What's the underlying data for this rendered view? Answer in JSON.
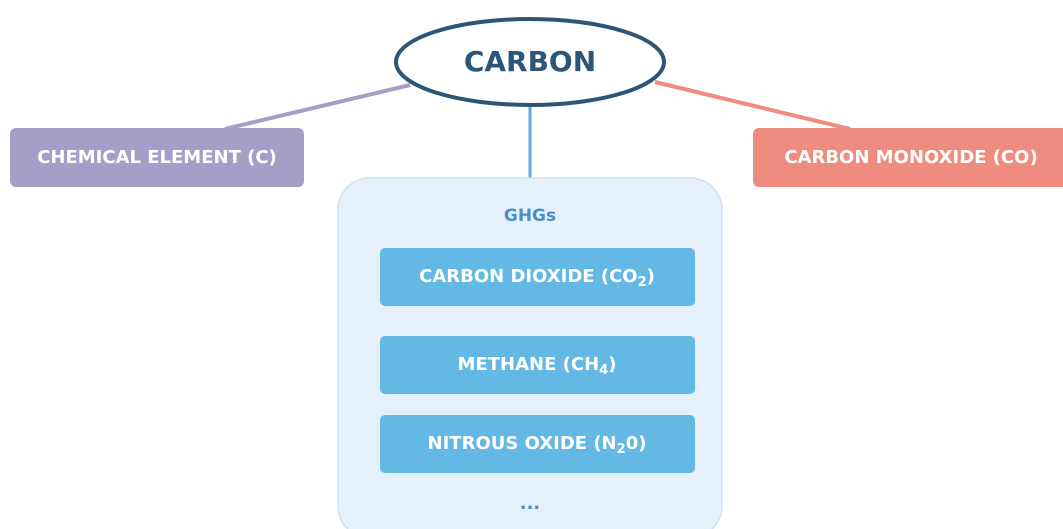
{
  "center": {
    "label": "CARBON"
  },
  "left_node": {
    "label": "CHEMICAL ELEMENT (C)"
  },
  "right_node": {
    "label": "CARBON MONOXIDE (CO)"
  },
  "group": {
    "title": "GHGs",
    "items": [
      {
        "text": "CARBON DIOXIDE (CO",
        "sub": "2",
        "tail": ")"
      },
      {
        "text": "METHANE (CH",
        "sub": "4",
        "tail": ")"
      },
      {
        "text": "NITROUS OXIDE (N",
        "sub": "2",
        "tail": "0)"
      }
    ],
    "more": "..."
  }
}
